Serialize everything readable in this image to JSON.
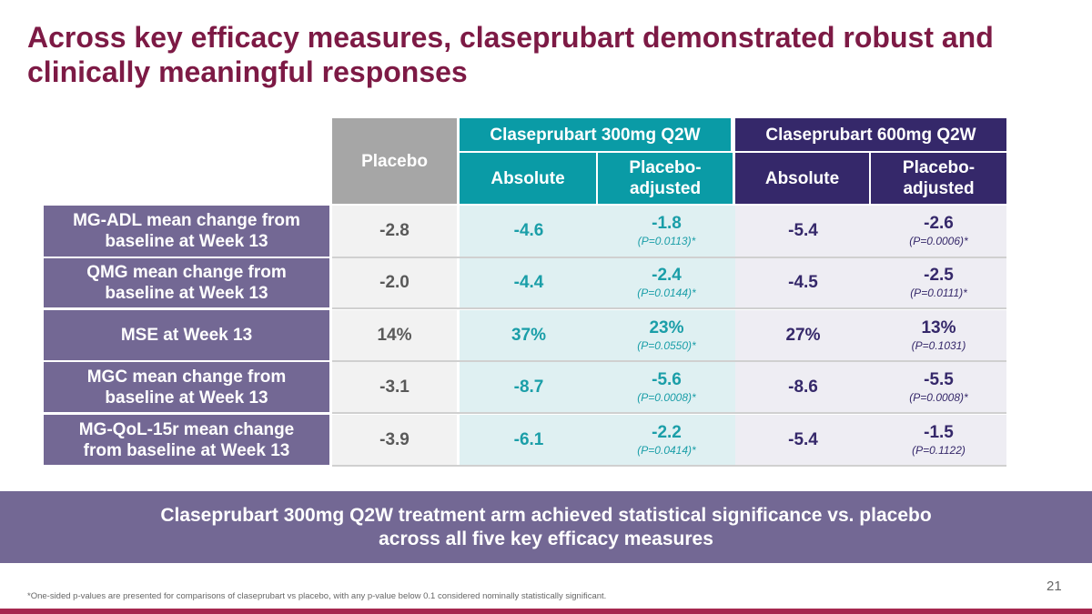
{
  "title": "Across key efficacy measures, claseprubart demonstrated robust and clinically meaningful responses",
  "colors": {
    "title": "#7d1a45",
    "teal": "#0a9ba6",
    "dark_purple": "#35286a",
    "row_header": "#736894",
    "placebo_header": "#a6a6a6"
  },
  "table": {
    "placebo_header": "Placebo",
    "groups": [
      {
        "label": "Claseprubart 300mg Q2W",
        "absolute": "Absolute",
        "adjusted": "Placebo-adjusted"
      },
      {
        "label": "Claseprubart 600mg Q2W",
        "absolute": "Absolute",
        "adjusted": "Placebo-adjusted"
      }
    ],
    "rows": [
      {
        "label": "MG-ADL mean change from baseline at Week 13",
        "placebo": "-2.8",
        "d300_abs": "-4.6",
        "d300_adj": "-1.8",
        "d300_p": "(P=0.0113)*",
        "d600_abs": "-5.4",
        "d600_adj": "-2.6",
        "d600_p": "(P=0.0006)*"
      },
      {
        "label": "QMG mean change from baseline at Week 13",
        "placebo": "-2.0",
        "d300_abs": "-4.4",
        "d300_adj": "-2.4",
        "d300_p": "(P=0.0144)*",
        "d600_abs": "-4.5",
        "d600_adj": "-2.5",
        "d600_p": "(P=0.0111)*"
      },
      {
        "label": "MSE at Week 13",
        "placebo": "14%",
        "d300_abs": "37%",
        "d300_adj": "23%",
        "d300_p": "(P=0.0550)*",
        "d600_abs": "27%",
        "d600_adj": "13%",
        "d600_p": "(P=0.1031)"
      },
      {
        "label": "MGC mean change from baseline at Week 13",
        "placebo": "-3.1",
        "d300_abs": "-8.7",
        "d300_adj": "-5.6",
        "d300_p": "(P=0.0008)*",
        "d600_abs": "-8.6",
        "d600_adj": "-5.5",
        "d600_p": "(P=0.0008)*"
      },
      {
        "label": "MG-QoL-15r mean change from baseline at Week 13",
        "placebo": "-3.9",
        "d300_abs": "-6.1",
        "d300_adj": "-2.2",
        "d300_p": "(P=0.0414)*",
        "d600_abs": "-5.4",
        "d600_adj": "-1.5",
        "d600_p": "(P=0.1122)"
      }
    ]
  },
  "banner": "Claseprubart 300mg Q2W treatment arm achieved statistical significance vs. placebo across all five key efficacy measures",
  "footnote": "*One-sided p-values are presented for comparisons of claseprubart vs placebo, with any p-value below 0.1 considered nominally statistically significant.",
  "page_number": "21"
}
